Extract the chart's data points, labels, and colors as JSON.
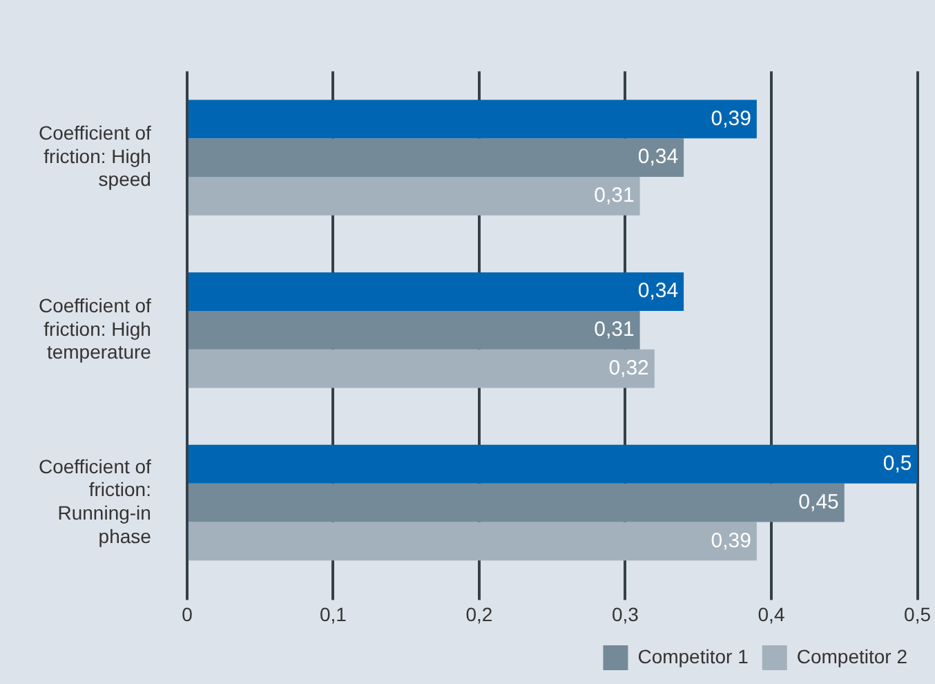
{
  "chart_data": {
    "type": "bar",
    "orientation": "horizontal",
    "categories": [
      "Coefficient of friction: High speed",
      "Coefficient of friction: High temperature",
      "Coefficient of friction: Running-in phase"
    ],
    "series": [
      {
        "color": "#0066b3",
        "values": [
          0.39,
          0.34,
          0.5
        ],
        "value_labels": [
          "0,39",
          "0,34",
          "0,5"
        ]
      },
      {
        "name": "Competitor 1",
        "color": "#748a98",
        "values": [
          0.34,
          0.31,
          0.45
        ],
        "value_labels": [
          "0,34",
          "0,31",
          "0,45"
        ]
      },
      {
        "name": "Competitor 2",
        "color": "#a3b1bd",
        "values": [
          0.31,
          0.32,
          0.39
        ],
        "value_labels": [
          "0,31",
          "0,32",
          "0,39"
        ]
      }
    ],
    "xlim": [
      0,
      0.5
    ],
    "xticks": [
      0,
      {
        "value": 0.1,
        "label": "0,1"
      },
      {
        "value": 0.2,
        "label": "0,2"
      },
      {
        "value": 0.3,
        "label": "0,3"
      },
      {
        "value": 0.4,
        "label": "0,4"
      },
      {
        "value": 0.5,
        "label": "0,5"
      }
    ],
    "grid": "x",
    "legend": "bottom right"
  }
}
